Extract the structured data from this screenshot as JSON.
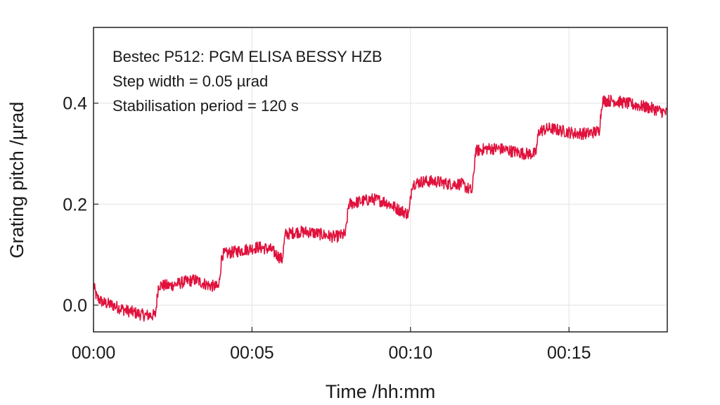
{
  "chart_data": {
    "type": "line",
    "xlabel": "Time /hh:mm",
    "ylabel": "Grating pitch /µrad",
    "xlim_minutes": [
      0,
      18.1
    ],
    "ylim": [
      -0.053,
      0.55
    ],
    "x_ticks": [
      {
        "value": 0,
        "label": "00:00"
      },
      {
        "value": 5,
        "label": "00:05"
      },
      {
        "value": 10,
        "label": "00:10"
      },
      {
        "value": 15,
        "label": "00:15"
      }
    ],
    "y_ticks": [
      {
        "value": 0.0,
        "label": "0.0"
      },
      {
        "value": 0.2,
        "label": "0.2"
      },
      {
        "value": 0.4,
        "label": "0.4"
      }
    ],
    "grid": true,
    "annotations": [
      "Bestec P512: PGM ELISA BESSY HZB",
      "Step width = 0.05 µrad",
      "Stabilisation period = 120 s"
    ],
    "series": [
      {
        "color": "#e0113c",
        "x": [
          0.0,
          0.1,
          0.3,
          0.6,
          1.0,
          1.3,
          1.6,
          1.95,
          2.05,
          2.4,
          2.8,
          3.2,
          3.6,
          3.95,
          4.05,
          4.4,
          4.8,
          5.2,
          5.6,
          5.95,
          6.05,
          6.4,
          6.8,
          7.2,
          7.6,
          7.95,
          8.05,
          8.4,
          8.8,
          9.2,
          9.6,
          9.95,
          10.05,
          10.4,
          10.8,
          11.2,
          11.6,
          11.95,
          12.05,
          12.4,
          12.8,
          13.2,
          13.6,
          13.95,
          14.05,
          14.4,
          14.8,
          15.2,
          15.6,
          15.95,
          16.05,
          16.4,
          16.8,
          17.2,
          17.6,
          18.1
        ],
        "y": [
          0.04,
          0.015,
          0.005,
          0.0,
          -0.01,
          -0.015,
          -0.02,
          -0.02,
          0.04,
          0.038,
          0.045,
          0.05,
          0.04,
          0.035,
          0.1,
          0.105,
          0.11,
          0.115,
          0.11,
          0.09,
          0.14,
          0.145,
          0.145,
          0.14,
          0.135,
          0.14,
          0.2,
          0.205,
          0.21,
          0.205,
          0.19,
          0.18,
          0.24,
          0.245,
          0.245,
          0.24,
          0.24,
          0.225,
          0.305,
          0.31,
          0.31,
          0.305,
          0.3,
          0.3,
          0.345,
          0.35,
          0.345,
          0.34,
          0.34,
          0.345,
          0.405,
          0.405,
          0.4,
          0.395,
          0.39,
          0.38
        ]
      }
    ]
  }
}
